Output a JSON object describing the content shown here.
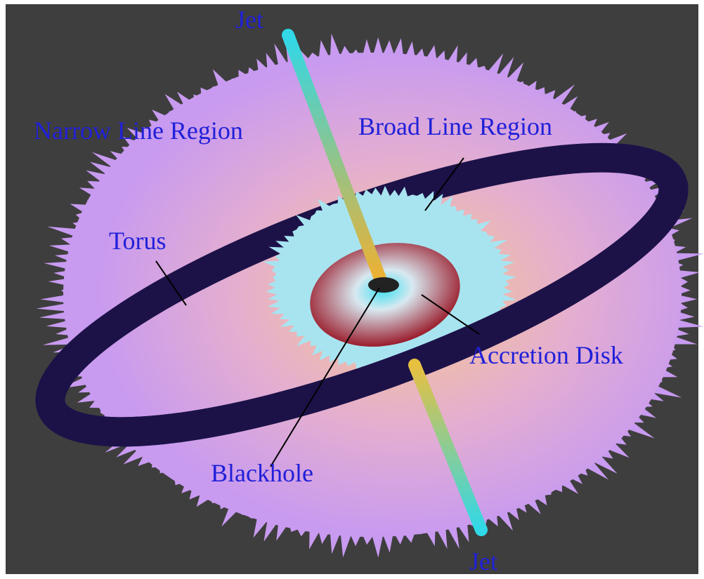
{
  "labels": [
    "Jet",
    "Narrow Line Region",
    "Broad Line Region",
    "Torus",
    "Accretion Disk",
    "Blackhole",
    "Jet"
  ]
}
